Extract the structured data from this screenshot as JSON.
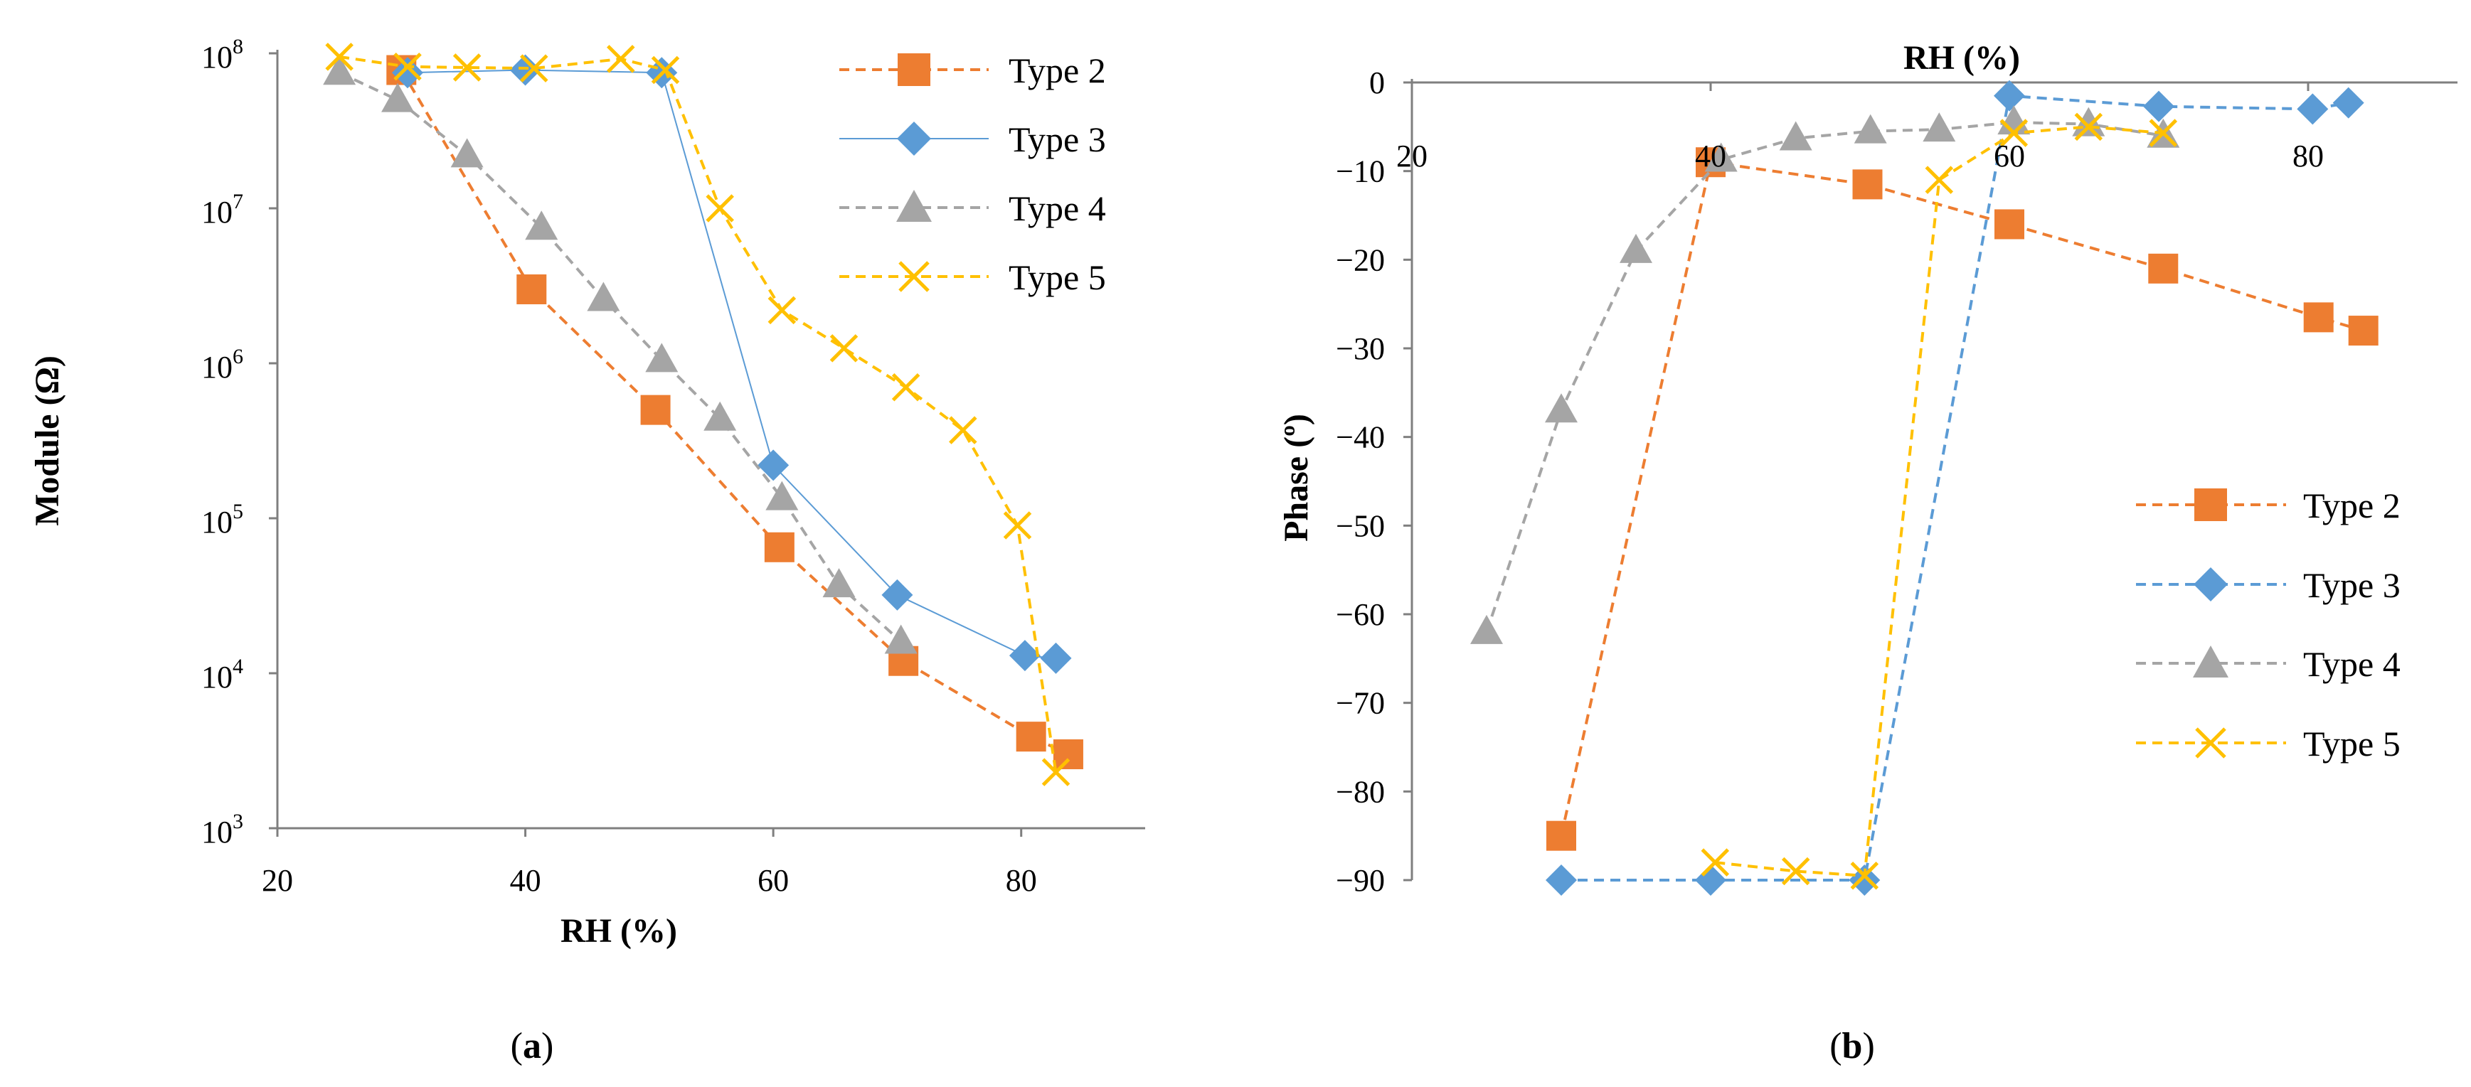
{
  "colors": {
    "type2": "#ED7D31",
    "type3": "#5B9BD5",
    "type4": "#A5A5A5",
    "type5": "#FFC000",
    "axis": "#7F7F7F"
  },
  "chart_data": [
    {
      "id": "a",
      "type": "line",
      "panel_label": {
        "open": "(",
        "letter": "a",
        "close": ")"
      },
      "xlabel": "RH (%)",
      "ylabel": "Module (Ω)",
      "xlim": [
        20,
        90
      ],
      "xticks": [
        20,
        40,
        60,
        80
      ],
      "yscale": "log",
      "ylim": [
        1000,
        100000000
      ],
      "yticks": [
        {
          "base": "10",
          "exp": "3"
        },
        {
          "base": "10",
          "exp": "4"
        },
        {
          "base": "10",
          "exp": "5"
        },
        {
          "base": "10",
          "exp": "6"
        },
        {
          "base": "10",
          "exp": "7"
        },
        {
          "base": "10",
          "exp": "8"
        }
      ],
      "legend_position": "top-right",
      "series": [
        {
          "name": "Type 2",
          "marker": "square",
          "line": "dashed",
          "color_key": "type2",
          "x": [
            30,
            40.5,
            50.5,
            60.5,
            70.5,
            80.8,
            83.8
          ],
          "y": [
            78000000,
            3000000,
            500000,
            65000,
            12000,
            3900,
            3000
          ]
        },
        {
          "name": "Type 3",
          "marker": "diamond",
          "line": "solid-thin",
          "color_key": "type3",
          "x": [
            30.5,
            40,
            51,
            60,
            70,
            80.3,
            82.8
          ],
          "y": [
            75000000,
            78000000,
            75000000,
            220000,
            32000,
            13000,
            12500
          ]
        },
        {
          "name": "Type 4",
          "marker": "triangle",
          "line": "dashed",
          "color_key": "type4",
          "x": [
            25,
            29.7,
            35.3,
            41.3,
            46.3,
            51,
            55.7,
            60.7,
            65.3,
            70.3
          ],
          "y": [
            75000000,
            50000000,
            22000000,
            7500000,
            2600000,
            1050000,
            440000,
            135000,
            37000,
            16000
          ]
        },
        {
          "name": "Type 5",
          "marker": "x",
          "line": "dashed",
          "color_key": "type5",
          "x": [
            25,
            30.5,
            35.3,
            40.7,
            47.7,
            51.3,
            55.7,
            60.7,
            65.7,
            70.7,
            75.3,
            79.7,
            82.8
          ],
          "y": [
            95000000,
            82000000,
            81000000,
            80000000,
            92000000,
            78000000,
            10000000,
            2200000,
            1250000,
            700000,
            370000,
            90000,
            2300
          ]
        }
      ]
    },
    {
      "id": "b",
      "type": "line",
      "panel_label": {
        "open": "(",
        "letter": "b",
        "close": ")"
      },
      "xlabel": "RH (%)",
      "ylabel": "Phase (º)",
      "xlim": [
        20,
        90
      ],
      "xticks": [
        20,
        40,
        60,
        80
      ],
      "ylim": [
        -90,
        0
      ],
      "yticks": [
        0,
        -10,
        -20,
        -30,
        -40,
        -50,
        -60,
        -70,
        -80,
        -90
      ],
      "legend_position": "right",
      "series": [
        {
          "name": "Type 2",
          "marker": "square",
          "line": "dashed",
          "color_key": "type2",
          "x": [
            30,
            40,
            50.5,
            60,
            70.3,
            80.7,
            83.7
          ],
          "y": [
            -85,
            -9,
            -11.5,
            -16,
            -21,
            -26.5,
            -28
          ]
        },
        {
          "name": "Type 3",
          "marker": "diamond",
          "line": "dashed",
          "color_key": "type3",
          "x": [
            30,
            40,
            50.3,
            60,
            70,
            80.3,
            82.7
          ],
          "y": [
            -90,
            -90,
            -90,
            -1.5,
            -2.7,
            -3,
            -2.3
          ]
        },
        {
          "name": "Type 4",
          "marker": "triangle",
          "line": "dashed",
          "color_key": "type4",
          "x": [
            25,
            30,
            35,
            40.7,
            45.7,
            50.7,
            55.3,
            60.3,
            65.3,
            70.3
          ],
          "y": [
            -62,
            -37,
            -19,
            -8.7,
            -6.3,
            -5.5,
            -5.3,
            -4.5,
            -4.7,
            -6
          ]
        },
        {
          "name": "Type 5",
          "marker": "x",
          "line": "dashed",
          "color_key": "type5",
          "x": [
            40.3,
            45.7,
            50.3,
            55.3,
            60.3,
            65.3,
            70.3
          ],
          "y": [
            -88,
            -89,
            -89.5,
            -11,
            -5.7,
            -5,
            -5.7
          ]
        }
      ]
    }
  ]
}
